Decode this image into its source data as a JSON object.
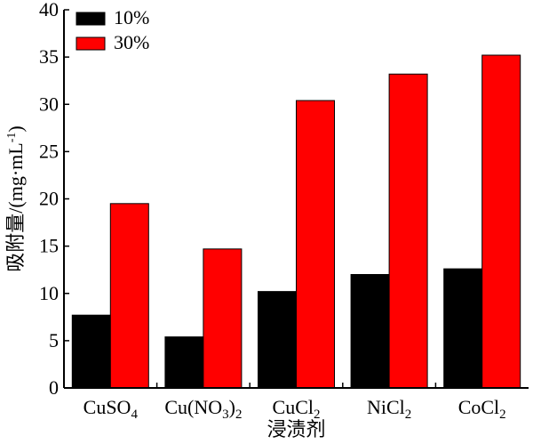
{
  "chart_data": {
    "type": "bar",
    "categories": [
      "CuSO4",
      "Cu(NO3)2",
      "CuCl2",
      "NiCl2",
      "CoCl2"
    ],
    "category_labels": [
      {
        "base": "CuSO",
        "sub": "4",
        "tail": ""
      },
      {
        "base": "Cu(NO",
        "sub": "3",
        "tail": ")2"
      },
      {
        "base": "CuCl",
        "sub": "2",
        "tail": ""
      },
      {
        "base": "NiCl",
        "sub": "2",
        "tail": ""
      },
      {
        "base": "CoCl",
        "sub": "2",
        "tail": ""
      }
    ],
    "series": [
      {
        "name": "10%",
        "color": "#000000",
        "values": [
          7.7,
          5.4,
          10.2,
          12.0,
          12.6
        ]
      },
      {
        "name": "30%",
        "color": "#ff0000",
        "values": [
          19.5,
          14.7,
          30.4,
          33.2,
          35.2
        ]
      }
    ],
    "xlabel": "浸渍剂",
    "ylabel": {
      "base": "吸附量/(mg·mL",
      "sup": "-1",
      "tail": ")"
    },
    "ylim": [
      0,
      40
    ],
    "yticks": [
      0,
      5,
      10,
      15,
      20,
      25,
      30,
      35,
      40
    ],
    "legend_position": "top-left",
    "grid": false
  }
}
